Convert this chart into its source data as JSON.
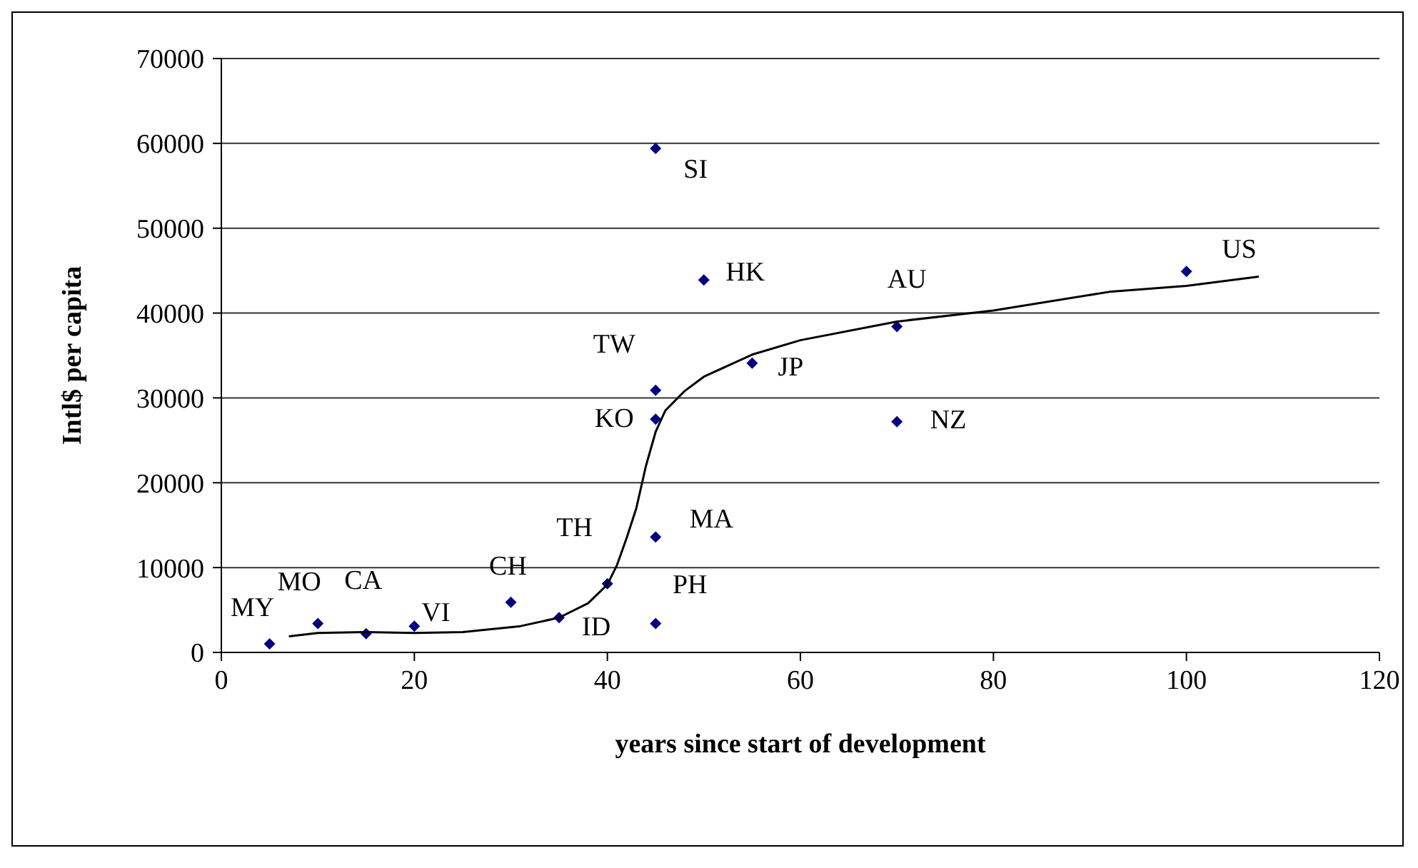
{
  "chart_data": {
    "type": "scatter",
    "xlabel": "years since start of development",
    "ylabel": "Intl$ per capita",
    "xlim": [
      0,
      120
    ],
    "xticks": [
      0,
      20,
      40,
      60,
      80,
      100,
      120
    ],
    "ylim": [
      0,
      70000
    ],
    "yticks": [
      0,
      10000,
      20000,
      30000,
      40000,
      50000,
      60000,
      70000
    ],
    "grid": "y",
    "legend": false,
    "marker": "diamond",
    "series": [
      {
        "color": "#000080",
        "x": [
          5,
          10,
          15,
          20,
          30,
          35,
          40,
          45,
          45,
          45,
          45,
          45,
          50,
          55,
          70,
          70,
          100
        ],
        "values": [
          1000,
          3400,
          2200,
          3100,
          5900,
          4100,
          8100,
          3400,
          13600,
          27500,
          30900,
          59400,
          43900,
          34100,
          38400,
          27200,
          44900
        ]
      },
      {
        "type": "line",
        "color": "#000000",
        "marker": "none",
        "line_style": "solid",
        "x": [
          7,
          10,
          15,
          20,
          25,
          31,
          35,
          38,
          40,
          41,
          42,
          43,
          44,
          45,
          46,
          48,
          50,
          55,
          60,
          70,
          80,
          92,
          100,
          107.5
        ],
        "values": [
          1900,
          2300,
          2400,
          2300,
          2400,
          3100,
          4100,
          5800,
          8000,
          10300,
          13500,
          17000,
          22000,
          26000,
          28500,
          30800,
          32500,
          35100,
          36800,
          39000,
          40300,
          42500,
          43200,
          44300
        ]
      }
    ],
    "annotations": [
      {
        "text": "MY",
        "x": 5,
        "y": 1000
      },
      {
        "text": "MO",
        "x": 10,
        "y": 3400
      },
      {
        "text": "CA",
        "x": 15,
        "y": 2200
      },
      {
        "text": "VI",
        "x": 20,
        "y": 3100
      },
      {
        "text": "CH",
        "x": 30,
        "y": 5900
      },
      {
        "text": "ID",
        "x": 35,
        "y": 4100
      },
      {
        "text": "TH",
        "x": 40,
        "y": 8100
      },
      {
        "text": "PH",
        "x": 45,
        "y": 3400
      },
      {
        "text": "MA",
        "x": 45,
        "y": 13600
      },
      {
        "text": "KO",
        "x": 45,
        "y": 27500
      },
      {
        "text": "TW",
        "x": 45,
        "y": 30900
      },
      {
        "text": "SI",
        "x": 45,
        "y": 59400
      },
      {
        "text": "HK",
        "x": 50,
        "y": 43900
      },
      {
        "text": "JP",
        "x": 55,
        "y": 34100
      },
      {
        "text": "AU",
        "x": 70,
        "y": 38400
      },
      {
        "text": "NZ",
        "x": 70,
        "y": 27200
      },
      {
        "text": "US",
        "x": 100,
        "y": 44900
      }
    ]
  }
}
